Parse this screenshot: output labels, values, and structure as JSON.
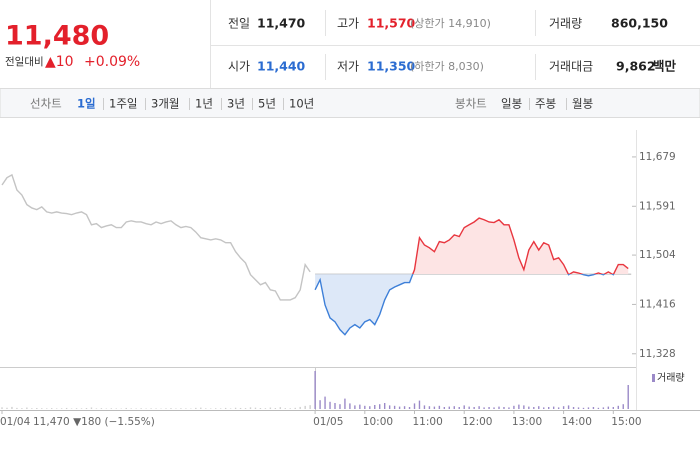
{
  "header": {
    "price": "11,480",
    "change_label": "전일대비",
    "change": "▲10",
    "change_rate": "+0.09%"
  },
  "info": {
    "rows": [
      [
        {
          "label": "전일",
          "value": "11,470"
        },
        {
          "label": "고가",
          "value": "11,570",
          "note": "(상한가 14,910)"
        },
        {
          "label": "거래량",
          "value": "860,150"
        }
      ],
      [
        {
          "label": "시가",
          "value": "11,440"
        },
        {
          "label": "저가",
          "value": "11,350",
          "note": "(하한가 8,030)"
        },
        {
          "label": "거래대금",
          "value": "9,862",
          "unit": "백만"
        }
      ]
    ]
  },
  "line_tabs": {
    "label": "선차트",
    "items": [
      "1일",
      "1주일",
      "3개월",
      "1년",
      "3년",
      "5년",
      "10년"
    ]
  },
  "candle_tabs": {
    "label": "봉차트",
    "items": [
      "일봉",
      "주봉",
      "월봉"
    ]
  },
  "chart_data": {
    "type": "line",
    "prev_day_label": "11,470 ▼180 (−1.55%)",
    "baseline": 11470,
    "ylim": [
      11308,
      11727
    ],
    "yticks": [
      {
        "value": 11328,
        "label": "11,328"
      },
      {
        "value": 11416,
        "label": "11,416"
      },
      {
        "value": 11504,
        "label": "11,504"
      },
      {
        "value": 11591,
        "label": "11,591"
      },
      {
        "value": 11679,
        "label": "11,679"
      }
    ],
    "categories": [
      "01/04",
      null,
      null,
      null,
      null,
      null,
      null,
      null,
      null,
      null,
      null,
      null,
      null,
      null,
      null,
      null,
      null,
      null,
      null,
      null,
      null,
      null,
      null,
      null,
      null,
      null,
      null,
      null,
      null,
      null,
      null,
      null,
      null,
      null,
      null,
      null,
      null,
      null,
      null,
      null,
      null,
      null,
      null,
      null,
      null,
      null,
      null,
      null,
      null,
      null,
      null,
      null,
      null,
      null,
      null,
      null,
      null,
      null,
      null,
      null,
      null,
      null,
      null,
      "01/05",
      null,
      null,
      null,
      null,
      null,
      null,
      null,
      null,
      null,
      "10:00",
      null,
      null,
      null,
      null,
      null,
      null,
      null,
      null,
      null,
      "11:00",
      null,
      null,
      null,
      null,
      null,
      null,
      null,
      null,
      null,
      "12:00",
      null,
      null,
      null,
      null,
      null,
      null,
      null,
      null,
      null,
      "13:00",
      null,
      null,
      null,
      null,
      null,
      null,
      null,
      null,
      null,
      "14:00",
      null,
      null,
      null,
      null,
      null,
      null,
      null,
      null,
      null,
      "15:00",
      null,
      null,
      null
    ],
    "series": [
      {
        "color": "#c4c4c4",
        "values": [
          11629,
          11642,
          11647,
          11620,
          11611,
          11594,
          11588,
          11585,
          11590,
          11581,
          11579,
          11581,
          11579,
          11578,
          11576,
          11579,
          11581,
          11576,
          11558,
          11560,
          11553,
          11556,
          11558,
          11553,
          11553,
          11563,
          11565,
          11563,
          11563,
          11560,
          11558,
          11563,
          11560,
          11563,
          11565,
          11558,
          11553,
          11555,
          11553,
          11545,
          11535,
          11533,
          11531,
          11533,
          11531,
          11526,
          11526,
          11510,
          11499,
          11490,
          11469,
          11460,
          11451,
          11455,
          11442,
          11440,
          11424,
          11424,
          11424,
          11428,
          11442,
          11487,
          11474,
          null,
          null,
          null,
          null,
          null,
          null,
          null,
          null,
          null,
          null,
          null,
          null,
          null,
          null,
          null,
          null,
          null,
          null,
          null,
          null,
          null,
          null,
          null,
          null,
          null,
          null,
          null,
          null,
          null,
          null,
          null,
          null,
          null,
          null,
          null,
          null,
          null,
          null,
          null,
          null,
          null,
          null,
          null,
          null,
          null,
          null,
          null,
          null,
          null,
          null,
          null,
          null,
          null,
          null,
          null,
          null,
          null,
          null,
          null,
          null,
          null,
          null,
          null,
          null
        ]
      },
      {
        "color": "#e8363f",
        "down_color": "#3d7fd8",
        "up_fill": "#fde4e4",
        "down_fill": "#dde8f8",
        "values": [
          null,
          null,
          null,
          null,
          null,
          null,
          null,
          null,
          null,
          null,
          null,
          null,
          null,
          null,
          null,
          null,
          null,
          null,
          null,
          null,
          null,
          null,
          null,
          null,
          null,
          null,
          null,
          null,
          null,
          null,
          null,
          null,
          null,
          null,
          null,
          null,
          null,
          null,
          null,
          null,
          null,
          null,
          null,
          null,
          null,
          null,
          null,
          null,
          null,
          null,
          null,
          null,
          null,
          null,
          null,
          null,
          null,
          null,
          null,
          null,
          null,
          null,
          null,
          11442,
          11460,
          11415,
          11392,
          11385,
          11371,
          11362,
          11374,
          11380,
          11374,
          11385,
          11389,
          11380,
          11398,
          11424,
          11442,
          11447,
          11451,
          11455,
          11455,
          11478,
          11535,
          11522,
          11517,
          11510,
          11528,
          11526,
          11531,
          11540,
          11537,
          11553,
          11558,
          11563,
          11570,
          11567,
          11563,
          11562,
          11567,
          11558,
          11558,
          11531,
          11499,
          11478,
          11513,
          11528,
          11513,
          11526,
          11522,
          11496,
          11499,
          11487,
          11469,
          11474,
          11472,
          11469,
          11467,
          11469,
          11472,
          11469,
          11474,
          11469,
          11487,
          11487,
          11480
        ]
      }
    ],
    "volume": {
      "name": "거래량",
      "color": "#9b8ac8",
      "prev_color": "#cfcfcf",
      "ylim": [
        0,
        100000
      ],
      "values": [
        4200,
        3100,
        5200,
        2800,
        2100,
        3600,
        1800,
        2500,
        1900,
        1500,
        2200,
        1400,
        1700,
        2600,
        1300,
        1900,
        1600,
        2400,
        3800,
        1500,
        2100,
        1200,
        1800,
        1400,
        1100,
        2600,
        1500,
        1300,
        1900,
        1200,
        1700,
        1400,
        1100,
        1600,
        2200,
        1300,
        1900,
        1500,
        1200,
        2800,
        3400,
        1600,
        1300,
        1800,
        1500,
        2700,
        1400,
        3100,
        2600,
        2200,
        4100,
        3300,
        2500,
        1900,
        3600,
        2400,
        4500,
        2100,
        1800,
        2900,
        5200,
        7800,
        9600,
        95000,
        22000,
        31000,
        18000,
        15000,
        12000,
        26000,
        14000,
        9000,
        11000,
        8000,
        7000,
        10000,
        12000,
        15000,
        9000,
        8000,
        6000,
        7000,
        5000,
        14000,
        21000,
        9000,
        7000,
        6000,
        8000,
        5000,
        6000,
        7000,
        5000,
        9000,
        6000,
        5000,
        7000,
        4000,
        5000,
        4000,
        6000,
        5000,
        4000,
        8000,
        11000,
        9000,
        6000,
        5000,
        7000,
        4000,
        5000,
        6000,
        4000,
        7000,
        9000,
        5000,
        4000,
        3000,
        4000,
        5000,
        3000,
        4000,
        6000,
        5000,
        8000,
        12000,
        60000
      ]
    }
  }
}
